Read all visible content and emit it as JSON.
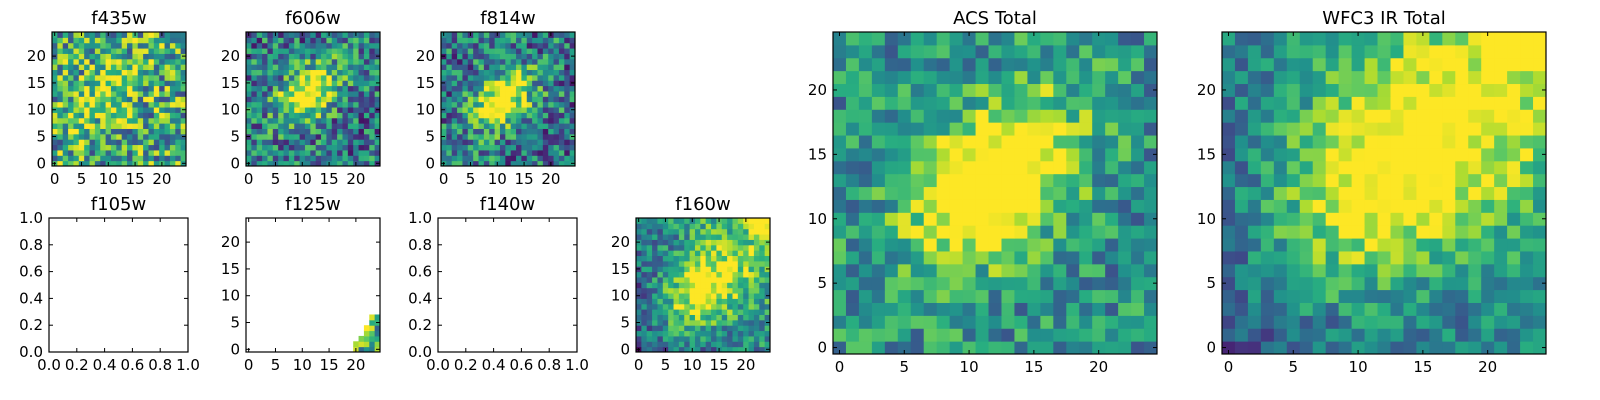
{
  "figure": {
    "colormap": "viridis",
    "palette": [
      "#440154",
      "#472d7b",
      "#3b528b",
      "#2c728e",
      "#21918c",
      "#28ae80",
      "#5ec962",
      "#addc30",
      "#fde725"
    ]
  },
  "chart_data": [
    {
      "id": "f435w",
      "type": "heatmap",
      "title": "f435w",
      "grid_size": 25,
      "xticks": [
        "0",
        "5",
        "10",
        "15",
        "20"
      ],
      "yticks": [
        "0",
        "5",
        "10",
        "15",
        "20"
      ],
      "values_mean": 0.6,
      "values_noise": 0.4,
      "blob": {
        "center": [
          10,
          13
        ],
        "sigma": 2.5,
        "amp": 0.15
      },
      "empty": false
    },
    {
      "id": "f606w",
      "type": "heatmap",
      "title": "f606w",
      "grid_size": 25,
      "xticks": [
        "0",
        "5",
        "10",
        "15",
        "20"
      ],
      "yticks": [
        "0",
        "5",
        "10",
        "15",
        "20"
      ],
      "values_mean": 0.4,
      "values_noise": 0.35,
      "blob": {
        "center": [
          11,
          13
        ],
        "sigma": 2.2,
        "amp": 0.4
      },
      "empty": false
    },
    {
      "id": "f814w",
      "type": "heatmap",
      "title": "f814w",
      "grid_size": 25,
      "xticks": [
        "0",
        "5",
        "10",
        "15",
        "20"
      ],
      "yticks": [
        "0",
        "5",
        "10",
        "15",
        "20"
      ],
      "values_mean": 0.4,
      "values_noise": 0.35,
      "blob": {
        "center": [
          11,
          12
        ],
        "sigma": 2.2,
        "amp": 0.4
      },
      "empty": false
    },
    {
      "id": "f105w",
      "type": "heatmap",
      "title": "f105w",
      "empty": true,
      "xticks": [
        "0.0",
        "0.2",
        "0.4",
        "0.6",
        "0.8",
        "1.0"
      ],
      "yticks": [
        "0.0",
        "0.2",
        "0.4",
        "0.6",
        "0.8",
        "1.0"
      ]
    },
    {
      "id": "f125w",
      "type": "heatmap",
      "title": "f125w",
      "grid_size": 25,
      "xticks": [
        "0",
        "5",
        "10",
        "15",
        "20"
      ],
      "yticks": [
        "0",
        "5",
        "10",
        "15",
        "20"
      ],
      "empty": false,
      "partial_corner": "bottom-right"
    },
    {
      "id": "f140w",
      "type": "heatmap",
      "title": "f140w",
      "empty": true,
      "xticks": [
        "0.0",
        "0.2",
        "0.4",
        "0.6",
        "0.8",
        "1.0"
      ],
      "yticks": [
        "0.0",
        "0.2",
        "0.4",
        "0.6",
        "0.8",
        "1.0"
      ]
    },
    {
      "id": "f160w",
      "type": "heatmap",
      "title": "f160w",
      "grid_size": 25,
      "xticks": [
        "0",
        "5",
        "10",
        "15",
        "20"
      ],
      "yticks": [
        "0",
        "5",
        "10",
        "15",
        "20"
      ],
      "values_mean": 0.45,
      "values_noise": 0.25,
      "blob": {
        "center": [
          12,
          11
        ],
        "sigma": 3.5,
        "amp": 0.3
      },
      "empty": false
    },
    {
      "id": "acs_total",
      "type": "heatmap",
      "title": "ACS Total",
      "grid_size": 25,
      "xticks": [
        "0",
        "5",
        "10",
        "15",
        "20"
      ],
      "yticks": [
        "0",
        "5",
        "10",
        "15",
        "20"
      ],
      "values_mean": 0.5,
      "values_noise": 0.25,
      "blob": {
        "center": [
          12,
          13
        ],
        "sigma": 2.5,
        "amp": 0.45
      },
      "empty": false
    },
    {
      "id": "wfc3_ir_total",
      "type": "heatmap",
      "title": "WFC3 IR Total",
      "grid_size": 25,
      "xticks": [
        "0",
        "5",
        "10",
        "15",
        "20"
      ],
      "yticks": [
        "0",
        "5",
        "10",
        "15",
        "20"
      ],
      "values_mean": 0.45,
      "values_noise": 0.2,
      "blob": {
        "center": [
          13,
          14
        ],
        "sigma": 4,
        "amp": 0.35
      },
      "empty": false
    }
  ]
}
